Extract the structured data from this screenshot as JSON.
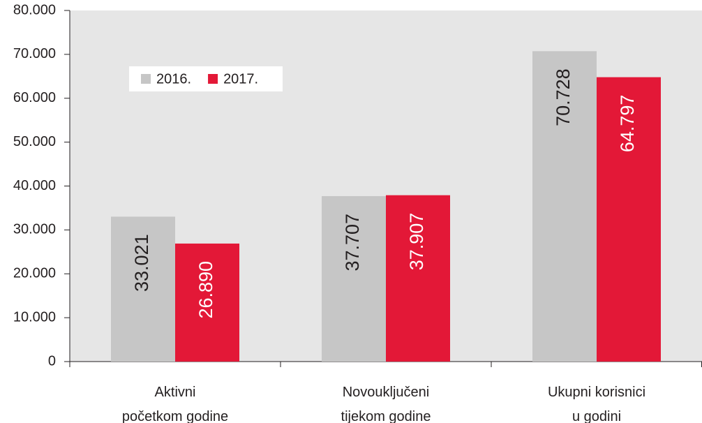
{
  "chart_data": {
    "type": "bar",
    "categories": [
      "Aktivni\npočetkom godine",
      "Novouključeni\ntijekom godine",
      "Ukupni korisnici\nu godini"
    ],
    "series": [
      {
        "name": "2016.",
        "color": "#c6c6c6",
        "label_color": "#231f20",
        "values": [
          33021,
          37707,
          70728
        ],
        "value_labels": [
          "33.021",
          "37.707",
          "70.728"
        ]
      },
      {
        "name": "2017.",
        "color": "#e31837",
        "label_color": "#ffffff",
        "values": [
          26890,
          37907,
          64797
        ],
        "value_labels": [
          "26.890",
          "37.907",
          "64.797"
        ]
      }
    ],
    "ylim": [
      0,
      80000
    ],
    "yticks": [
      0,
      {
        "value": 10000,
        "label": "10.000"
      },
      {
        "value": 20000,
        "label": "20.000"
      },
      {
        "value": 30000,
        "label": "30.000"
      },
      {
        "value": 40000,
        "label": "40.000"
      },
      {
        "value": 50000,
        "label": "50.000"
      },
      {
        "value": 60000,
        "label": "60.000"
      },
      {
        "value": 70000,
        "label": "70.000"
      },
      {
        "value": 80000,
        "label": "80.000"
      }
    ],
    "legend": "upper left"
  }
}
